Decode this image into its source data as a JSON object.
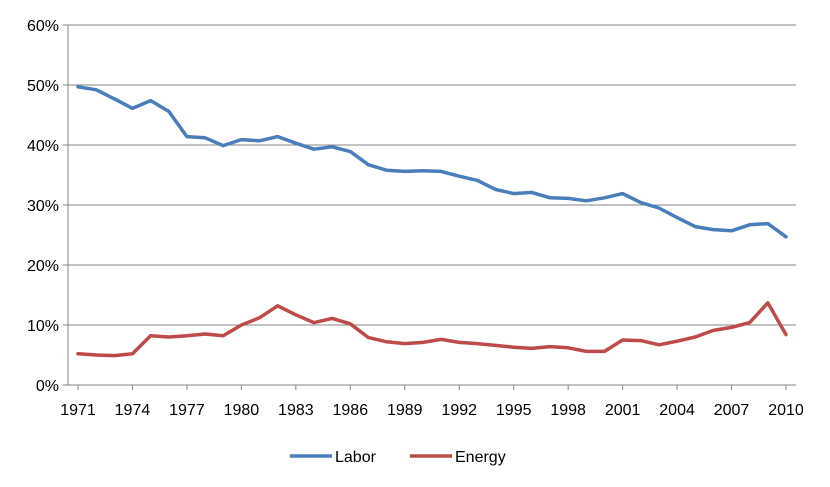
{
  "chart_data": {
    "type": "line",
    "title": "",
    "xlabel": "",
    "ylabel": "",
    "x": [
      1971,
      1972,
      1973,
      1974,
      1975,
      1976,
      1977,
      1978,
      1979,
      1980,
      1981,
      1982,
      1983,
      1984,
      1985,
      1986,
      1987,
      1988,
      1989,
      1990,
      1991,
      1992,
      1993,
      1994,
      1995,
      1996,
      1997,
      1998,
      1999,
      2000,
      2001,
      2002,
      2003,
      2004,
      2005,
      2006,
      2007,
      2008,
      2009,
      2010
    ],
    "x_tick_labels": [
      "1971",
      "1974",
      "1977",
      "1980",
      "1983",
      "1986",
      "1989",
      "1992",
      "1995",
      "1998",
      "2001",
      "2004",
      "2007",
      "2010"
    ],
    "y_tick_labels": [
      "0%",
      "10%",
      "20%",
      "30%",
      "40%",
      "50%",
      "60%"
    ],
    "ylim": [
      0,
      60
    ],
    "grid": true,
    "legend_position": "bottom",
    "series": [
      {
        "name": "Labor",
        "color": "#4A7EBB",
        "values": [
          49.7,
          49.2,
          47.7,
          46.1,
          47.4,
          45.6,
          41.4,
          41.2,
          39.9,
          40.9,
          40.7,
          41.4,
          40.3,
          39.3,
          39.7,
          38.9,
          36.7,
          35.8,
          35.6,
          35.7,
          35.6,
          34.8,
          34.1,
          32.6,
          31.9,
          32.1,
          31.2,
          31.1,
          30.7,
          31.2,
          31.9,
          30.4,
          29.5,
          27.9,
          26.4,
          25.9,
          25.7,
          26.7,
          26.9,
          24.7
        ]
      },
      {
        "name": "Energy",
        "color": "#BE4B48",
        "values": [
          5.2,
          5.0,
          4.9,
          5.2,
          8.2,
          8.0,
          8.2,
          8.5,
          8.2,
          10.0,
          11.2,
          13.2,
          11.7,
          10.4,
          11.1,
          10.2,
          7.9,
          7.2,
          6.9,
          7.1,
          7.6,
          7.1,
          6.9,
          6.6,
          6.3,
          6.1,
          6.4,
          6.2,
          5.6,
          5.6,
          7.5,
          7.4,
          6.7,
          7.3,
          8.0,
          9.1,
          9.6,
          10.4,
          13.7,
          8.4
        ]
      }
    ]
  }
}
